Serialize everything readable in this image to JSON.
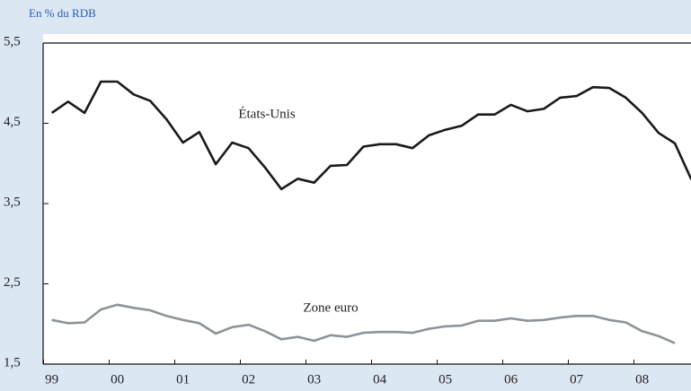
{
  "chart_data": {
    "type": "line",
    "subtitle": "En % du RDB",
    "annotations": [
      "États-Unis",
      "Zone euro"
    ],
    "categories": [
      "99",
      null,
      null,
      null,
      "00",
      null,
      null,
      null,
      "01",
      null,
      null,
      null,
      "02",
      null,
      null,
      null,
      "03",
      null,
      null,
      null,
      "04",
      null,
      null,
      null,
      "05",
      null,
      null,
      null,
      "06",
      null,
      null,
      null,
      "07",
      null,
      null,
      null,
      "08",
      null,
      null,
      null
    ],
    "series": [
      {
        "name": "États-Unis",
        "color": "#1a1a1a",
        "values": [
          4.63,
          4.77,
          4.63,
          5.02,
          5.02,
          4.86,
          4.78,
          4.55,
          4.26,
          4.39,
          3.99,
          4.26,
          4.19,
          3.95,
          3.68,
          3.81,
          3.76,
          3.97,
          3.98,
          4.21,
          4.24,
          4.24,
          4.19,
          4.35,
          4.42,
          4.47,
          4.61,
          4.61,
          4.73,
          4.65,
          4.68,
          4.82,
          4.84,
          4.95,
          4.94,
          4.82,
          4.63,
          4.38,
          4.25,
          3.8
        ]
      },
      {
        "name": "Zone euro",
        "color": "#8c9399",
        "values": [
          2.05,
          2.01,
          2.02,
          2.18,
          2.24,
          2.2,
          2.17,
          2.1,
          2.05,
          2.01,
          1.88,
          1.96,
          1.99,
          1.91,
          1.81,
          1.84,
          1.79,
          1.86,
          1.84,
          1.89,
          1.9,
          1.9,
          1.89,
          1.94,
          1.97,
          1.98,
          2.04,
          2.04,
          2.07,
          2.04,
          2.05,
          2.08,
          2.1,
          2.1,
          2.05,
          2.02,
          1.91,
          1.85,
          1.76,
          null
        ]
      }
    ],
    "ylim": [
      1.5,
      5.5
    ],
    "yticks": [
      {
        "value": 1.5,
        "label": "1,5"
      },
      {
        "value": 2.5,
        "label": "2,5"
      },
      {
        "value": 3.5,
        "label": "3,5"
      },
      {
        "value": 4.5,
        "label": "4,5"
      },
      {
        "value": 5.5,
        "label": "5,5"
      }
    ]
  }
}
